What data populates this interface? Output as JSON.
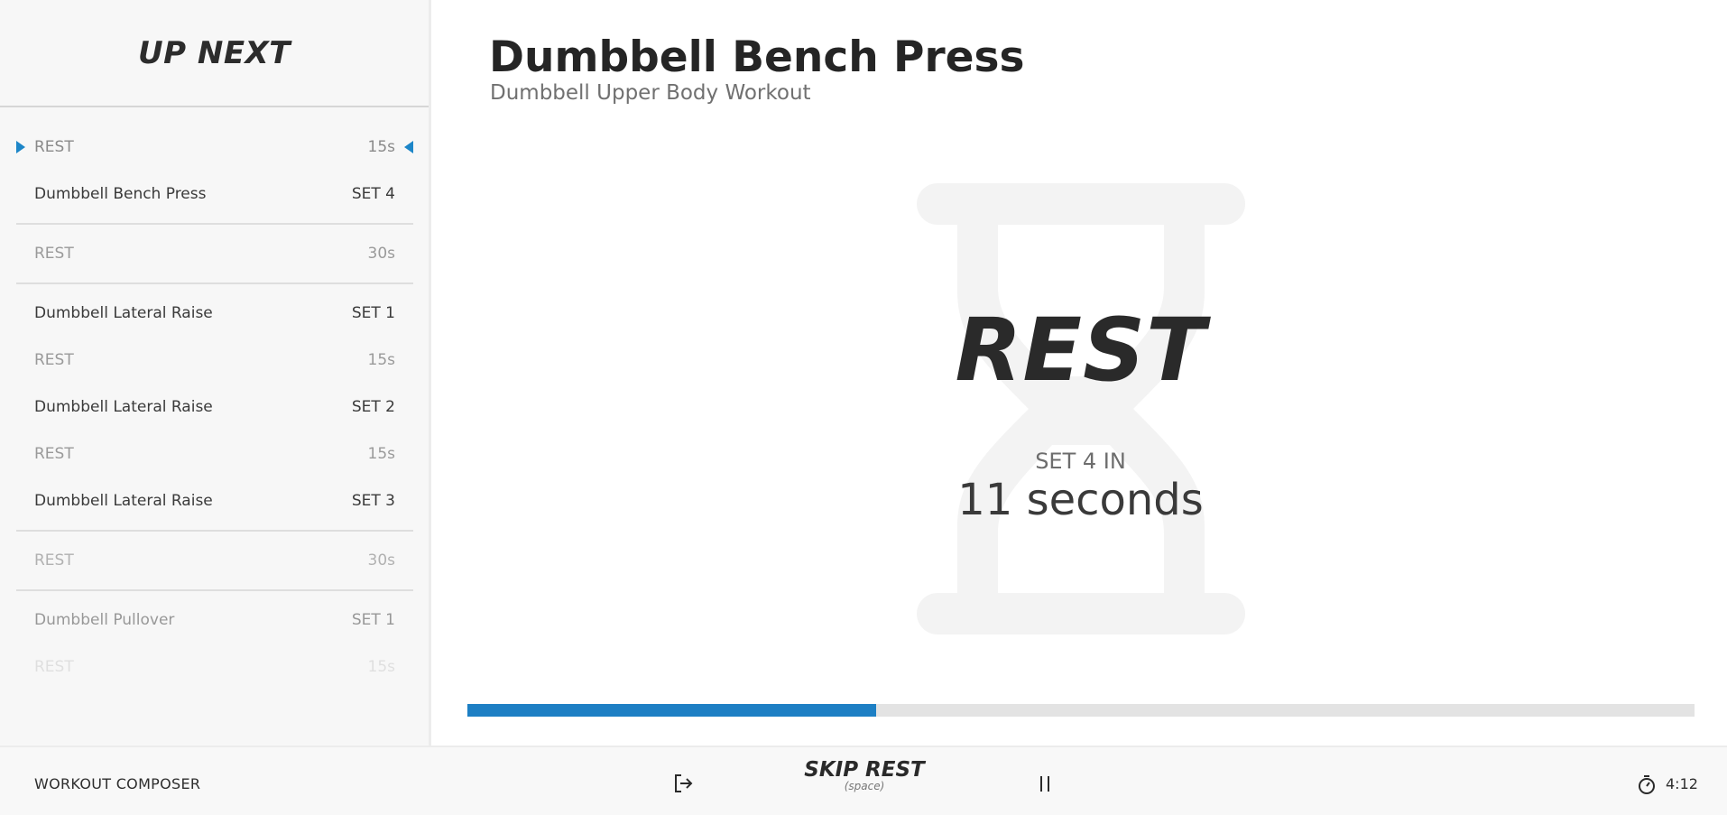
{
  "sidebar": {
    "title": "UP NEXT",
    "groups": [
      {
        "items": [
          {
            "name": "REST",
            "meta": "15s",
            "type": "rest",
            "current": true
          },
          {
            "name": "Dumbbell Bench Press",
            "meta": "SET 4",
            "type": "exercise"
          }
        ]
      },
      {
        "items": [
          {
            "name": "REST",
            "meta": "30s",
            "type": "rest"
          }
        ]
      },
      {
        "items": [
          {
            "name": "Dumbbell Lateral Raise",
            "meta": "SET 1",
            "type": "exercise"
          },
          {
            "name": "REST",
            "meta": "15s",
            "type": "rest"
          },
          {
            "name": "Dumbbell Lateral Raise",
            "meta": "SET 2",
            "type": "exercise"
          },
          {
            "name": "REST",
            "meta": "15s",
            "type": "rest"
          },
          {
            "name": "Dumbbell Lateral Raise",
            "meta": "SET 3",
            "type": "exercise"
          }
        ]
      },
      {
        "items": [
          {
            "name": "REST",
            "meta": "30s",
            "type": "rest"
          }
        ]
      },
      {
        "items": [
          {
            "name": "Dumbbell Pullover",
            "meta": "SET 1",
            "type": "exercise"
          },
          {
            "name": "REST",
            "meta": "15s",
            "type": "rest"
          }
        ]
      }
    ]
  },
  "main": {
    "exercise_title": "Dumbbell Bench Press",
    "workout_name": "Dumbbell Upper Body Workout",
    "state_label": "REST",
    "next_label": "SET 4 IN",
    "countdown": "11 seconds",
    "background_icon": "hourglass-icon",
    "progress_fraction": 0.333
  },
  "footer": {
    "brand": "WORKOUT COMPOSER",
    "exit_icon": "exit-icon",
    "skip_label": "SKIP REST",
    "skip_hint": "(space)",
    "pause_icon": "pause-icon",
    "timer_icon": "stopwatch-icon",
    "elapsed": "4:12"
  },
  "colors": {
    "accent": "#1d7fc4",
    "marker": "#1d86c8",
    "track": "#e3e3e3",
    "hourglass": "#f3f3f3"
  }
}
